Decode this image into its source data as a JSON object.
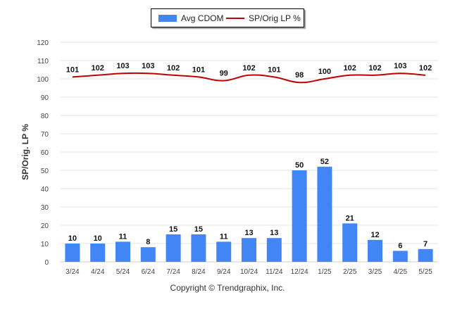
{
  "chart_data": {
    "type": "bar",
    "categories": [
      "3/24",
      "4/24",
      "5/24",
      "6/24",
      "7/24",
      "8/24",
      "9/24",
      "10/24",
      "11/24",
      "12/24",
      "1/25",
      "2/25",
      "3/25",
      "4/25",
      "5/25"
    ],
    "series": [
      {
        "name": "Avg CDOM",
        "type": "bar",
        "color": "#4285f4",
        "values": [
          10,
          10,
          11,
          8,
          15,
          15,
          11,
          13,
          13,
          50,
          52,
          21,
          12,
          6,
          7
        ]
      },
      {
        "name": "SP/Orig LP %",
        "type": "line",
        "color": "#c00000",
        "values": [
          101,
          102,
          103,
          103,
          102,
          101,
          99,
          102,
          101,
          98,
          100,
          102,
          102,
          103,
          102
        ]
      }
    ],
    "xlabel": "",
    "ylabel": "SP/Orig. LP %",
    "ylim": [
      0,
      120
    ],
    "yticks": [
      0,
      10,
      20,
      30,
      40,
      50,
      60,
      70,
      80,
      90,
      100,
      110,
      120
    ],
    "grid": true,
    "legend_position": "top-center"
  },
  "legend": {
    "bar_label": "Avg CDOM",
    "line_label": "SP/Orig LP %"
  },
  "axis": {
    "ylabel": "SP/Orig. LP %"
  },
  "footer": {
    "copyright": "Copyright © Trendgraphix, Inc."
  }
}
